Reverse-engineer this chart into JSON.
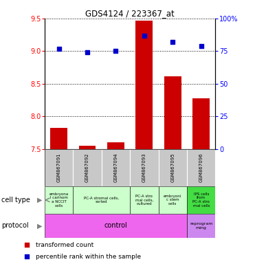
{
  "title": "GDS4124 / 223367_at",
  "samples": [
    "GSM867091",
    "GSM867092",
    "GSM867094",
    "GSM867093",
    "GSM867095",
    "GSM867096"
  ],
  "transformed_counts": [
    7.83,
    7.55,
    7.6,
    9.47,
    8.62,
    8.28
  ],
  "percentile_ranks_pct": [
    77,
    74,
    75,
    87,
    82,
    79
  ],
  "ylim_left": [
    7.5,
    9.5
  ],
  "ylim_right": [
    0,
    100
  ],
  "yticks_left": [
    7.5,
    8.0,
    8.5,
    9.0,
    9.5
  ],
  "yticks_right": [
    0,
    25,
    50,
    75,
    100
  ],
  "bar_color": "#cc0000",
  "dot_color": "#0000cc",
  "sample_bg_color": "#c8c8c8",
  "cell_type_entries": [
    {
      "start": 0,
      "end": 0,
      "label": "embryona\nl carinom\na NCCIT\ncells",
      "color": "#ccffcc"
    },
    {
      "start": 1,
      "end": 2,
      "label": "PC-A stromal cells,\nsorted",
      "color": "#ccffcc"
    },
    {
      "start": 3,
      "end": 3,
      "label": "PC-A stro\nmal cells,\ncultured",
      "color": "#ccffcc"
    },
    {
      "start": 4,
      "end": 4,
      "label": "embryoni\nc stem\ncells",
      "color": "#ccffcc"
    },
    {
      "start": 5,
      "end": 5,
      "label": "IPS cells\nfrom\nPC-A stro\nmal cells",
      "color": "#44dd44"
    }
  ],
  "protocol_entries": [
    {
      "start": 0,
      "end": 4,
      "label": "control",
      "color": "#ee66ee"
    },
    {
      "start": 5,
      "end": 5,
      "label": "reprogram\nming",
      "color": "#cc88ee"
    }
  ],
  "legend_items": [
    {
      "color": "#cc0000",
      "marker": "s",
      "label": "transformed count"
    },
    {
      "color": "#0000cc",
      "marker": "s",
      "label": "percentile rank within the sample"
    }
  ]
}
